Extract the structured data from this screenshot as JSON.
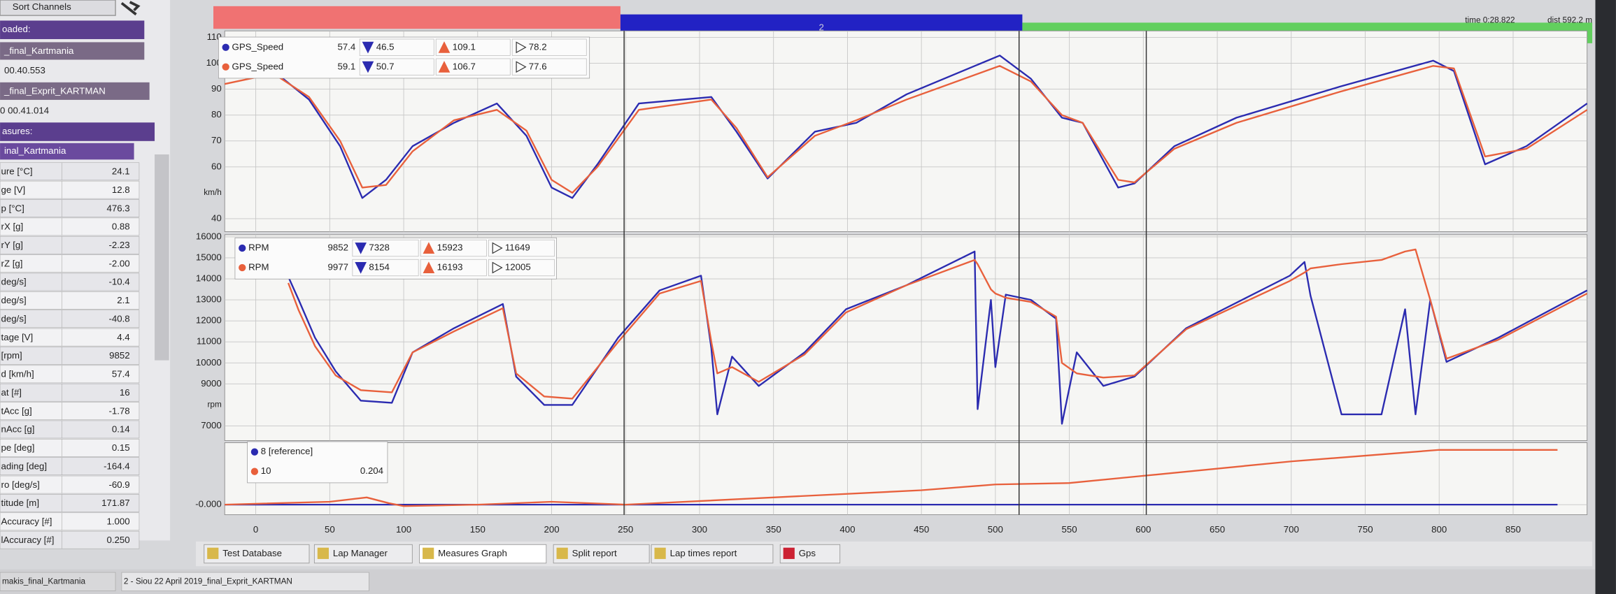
{
  "toolbar": {
    "sort_channels": "Sort Channels"
  },
  "sector_bar": {
    "label": "2"
  },
  "status": {
    "time": "time 0:28.822",
    "dist": "dist 592.2 m"
  },
  "side_panel": {
    "loaded_label": "oaded:",
    "files": [
      {
        "name": "_final_Kartmania",
        "time": "00.40.553"
      },
      {
        "name": "_final_Exprit_KARTMAN",
        "time": "0 00.41.014"
      }
    ],
    "measures_label": "asures:",
    "measures_file": "inal_Kartmania",
    "channels": [
      {
        "name": "ure  [°C]",
        "value": "24.1"
      },
      {
        "name": "ge  [V]",
        "value": "12.8"
      },
      {
        "name": "p  [°C]",
        "value": "476.3"
      },
      {
        "name": "rX  [g]",
        "value": "0.88"
      },
      {
        "name": "rY  [g]",
        "value": "-2.23"
      },
      {
        "name": "rZ  [g]",
        "value": "-2.00"
      },
      {
        "name": "deg/s]",
        "value": "-10.4"
      },
      {
        "name": "deg/s]",
        "value": "2.1"
      },
      {
        "name": "deg/s]",
        "value": "-40.8"
      },
      {
        "name": "tage  [V]",
        "value": "4.4"
      },
      {
        "name": "[rpm]",
        "value": "9852"
      },
      {
        "name": "d  [km/h]",
        "value": "57.4"
      },
      {
        "name": "at  [#]",
        "value": "16"
      },
      {
        "name": "tAcc  [g]",
        "value": "-1.78"
      },
      {
        "name": "nAcc  [g]",
        "value": "0.14"
      },
      {
        "name": "pe  [deg]",
        "value": "0.15"
      },
      {
        "name": "ading  [deg]",
        "value": "-164.4"
      },
      {
        "name": "ro  [deg/s]",
        "value": "-60.9"
      },
      {
        "name": "titude  [m]",
        "value": "171.87"
      },
      {
        "name": "Accuracy  [#]",
        "value": "1.000"
      },
      {
        "name": "lAccuracy  [#]",
        "value": "0.250"
      }
    ]
  },
  "chart_data": [
    {
      "type": "line",
      "unit_label": "km/h",
      "xlim": [
        -21,
        900
      ],
      "ylim": [
        35,
        112.5
      ],
      "yticks": [
        40,
        60,
        70,
        80,
        90,
        100,
        110
      ],
      "grid": true,
      "x": [
        -21,
        12,
        36,
        57,
        72,
        88,
        106,
        134,
        163,
        183,
        200,
        214,
        231,
        259,
        308,
        325,
        346,
        378,
        406,
        440,
        503,
        524,
        545,
        559,
        583,
        594,
        621,
        663,
        733,
        796,
        810,
        831,
        859,
        900
      ],
      "series": [
        {
          "name": "GPS_Speed",
          "color": "#2b2bb0",
          "current": 57.4,
          "min": 46.5,
          "max": 109.1,
          "avg": 78.2,
          "values": [
            95.5,
            97,
            86,
            68,
            48,
            55,
            68,
            77,
            84.5,
            72,
            52,
            48,
            61,
            84.5,
            87,
            73.6,
            55.5,
            73.6,
            77,
            88,
            103,
            94,
            79,
            77,
            52,
            53.6,
            68,
            79,
            91,
            101,
            97,
            61,
            68,
            84.5
          ]
        },
        {
          "name": "GPS_Speed",
          "color": "#e8603c",
          "current": 59.1,
          "min": 50.7,
          "max": 106.7,
          "avg": 77.6,
          "values": [
            92,
            96,
            87,
            70,
            52,
            53,
            66,
            78,
            82,
            74,
            55,
            50,
            60,
            82,
            86,
            75,
            56,
            72,
            78,
            86,
            99,
            93,
            80,
            77,
            55,
            54,
            67,
            77,
            89,
            99,
            98,
            64,
            67,
            82
          ]
        }
      ]
    },
    {
      "type": "line",
      "unit_label": "rpm",
      "xlim": [
        -21,
        900
      ],
      "ylim": [
        6300,
        16100
      ],
      "yticks": [
        7000,
        9000,
        10000,
        11000,
        12000,
        13000,
        14000,
        15000,
        16000
      ],
      "grid": true,
      "x": [
        22,
        29,
        40,
        54,
        71,
        92,
        106,
        134,
        167,
        176,
        195,
        214,
        245,
        273,
        301,
        308,
        312,
        322,
        340,
        371,
        399,
        440,
        486,
        488,
        497,
        500,
        507,
        524,
        541,
        545,
        555,
        573,
        594,
        629,
        699,
        709,
        713,
        734,
        761,
        777,
        784,
        794,
        805,
        840,
        900
      ],
      "series": [
        {
          "name": "RPM",
          "color": "#2b2bb0",
          "current": 9852,
          "min": 7328,
          "max": 15923,
          "avg": 11649,
          "values": [
            14100,
            13000,
            11200,
            9600,
            8200,
            8100,
            10500,
            11650,
            12800,
            9350,
            8000,
            8000,
            11200,
            13450,
            14150,
            10700,
            7550,
            10300,
            8900,
            10500,
            12550,
            13700,
            15300,
            7800,
            13000,
            9800,
            13250,
            13000,
            12100,
            7100,
            10500,
            8900,
            9350,
            11650,
            14150,
            14800,
            13200,
            7550,
            7550,
            12550,
            7550,
            13000,
            10050,
            11200,
            13450
          ]
        },
        {
          "name": "RPM",
          "color": "#e8603c",
          "current": 9977,
          "min": 8154,
          "max": 16193,
          "avg": 12005,
          "values": [
            13800,
            12500,
            10800,
            9400,
            8700,
            8600,
            10500,
            11500,
            12600,
            9500,
            8400,
            8300,
            11000,
            13300,
            13900,
            11000,
            9500,
            9800,
            9100,
            10400,
            12400,
            13700,
            14900,
            14700,
            13500,
            13300,
            13100,
            12900,
            12200,
            10000,
            9500,
            9300,
            9400,
            11600,
            13900,
            14300,
            14500,
            14700,
            14900,
            15300,
            15400,
            13000,
            10200,
            11100,
            13300
          ]
        }
      ]
    },
    {
      "type": "line",
      "xlim": [
        -21,
        900
      ],
      "xticks": [
        0,
        50,
        100,
        150,
        200,
        250,
        300,
        350,
        400,
        450,
        500,
        550,
        600,
        650,
        700,
        750,
        800,
        850
      ],
      "ylim": [
        -0.07,
        0.43
      ],
      "yticks": [
        {
          "value": 0,
          "label": "-0.000"
        }
      ],
      "grid": true,
      "x": [
        -21,
        50,
        75,
        90,
        100,
        150,
        200,
        250,
        350,
        450,
        500,
        550,
        600,
        700,
        800,
        880
      ],
      "series": [
        {
          "name": "8 [reference]",
          "color": "#2b2bb0",
          "values": [
            0,
            0,
            0,
            0,
            0,
            0,
            0,
            0,
            0,
            0,
            0,
            0,
            0,
            0,
            0,
            0
          ]
        },
        {
          "name": "10",
          "color": "#e8603c",
          "current": 0.204,
          "values": [
            0,
            0.02,
            0.05,
            0.01,
            -0.01,
            0,
            0.02,
            0,
            0.05,
            0.1,
            0.14,
            0.15,
            0.2,
            0.3,
            0.38,
            0.38
          ]
        }
      ]
    }
  ],
  "cursors": [
    249,
    516,
    602
  ],
  "tabs": [
    "Test Database",
    "Lap Manager",
    "Measures Graph",
    "Split report",
    "Lap times report",
    "Gps"
  ],
  "footer": [
    "makis_final_Kartmania",
    "2 - Siou 22 April 2019_final_Exprit_KARTMAN"
  ]
}
